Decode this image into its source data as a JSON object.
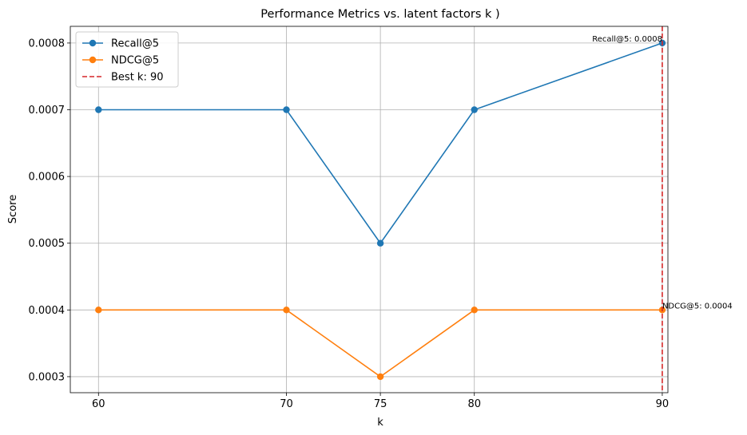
{
  "chart_data": {
    "type": "line",
    "title": "Performance Metrics vs. latent factors k )",
    "xlabel": "k",
    "ylabel": "Score",
    "x": [
      60,
      70,
      75,
      80,
      90
    ],
    "xticks": [
      "60",
      "70",
      "75",
      "80",
      "90"
    ],
    "yticks": [
      "0.0003",
      "0.0004",
      "0.0005",
      "0.0006",
      "0.0007",
      "0.0008"
    ],
    "ytick_values": [
      0.0003,
      0.0004,
      0.0005,
      0.0006,
      0.0007,
      0.0008
    ],
    "xlim": [
      58.5,
      90.3
    ],
    "ylim": [
      0.000276,
      0.000825
    ],
    "grid": true,
    "legend_position": "top-left",
    "series": [
      {
        "name": "Recall@5",
        "color": "#1f77b4",
        "values": [
          0.0007,
          0.0007,
          0.0005,
          0.0007,
          0.0008
        ]
      },
      {
        "name": "NDCG@5",
        "color": "#ff7f0e",
        "values": [
          0.0004,
          0.0004,
          0.0003,
          0.0004,
          0.0004
        ]
      }
    ],
    "best_line": {
      "label": "Best k: 90",
      "x": 90,
      "color": "#d62728"
    },
    "annotations": [
      {
        "text": "Recall@5: 0.0008",
        "x": 90,
        "y": 0.0008,
        "anchor": "end"
      },
      {
        "text": "NDCG@5: 0.0004",
        "x": 90,
        "y": 0.0004,
        "anchor": "start"
      }
    ]
  }
}
